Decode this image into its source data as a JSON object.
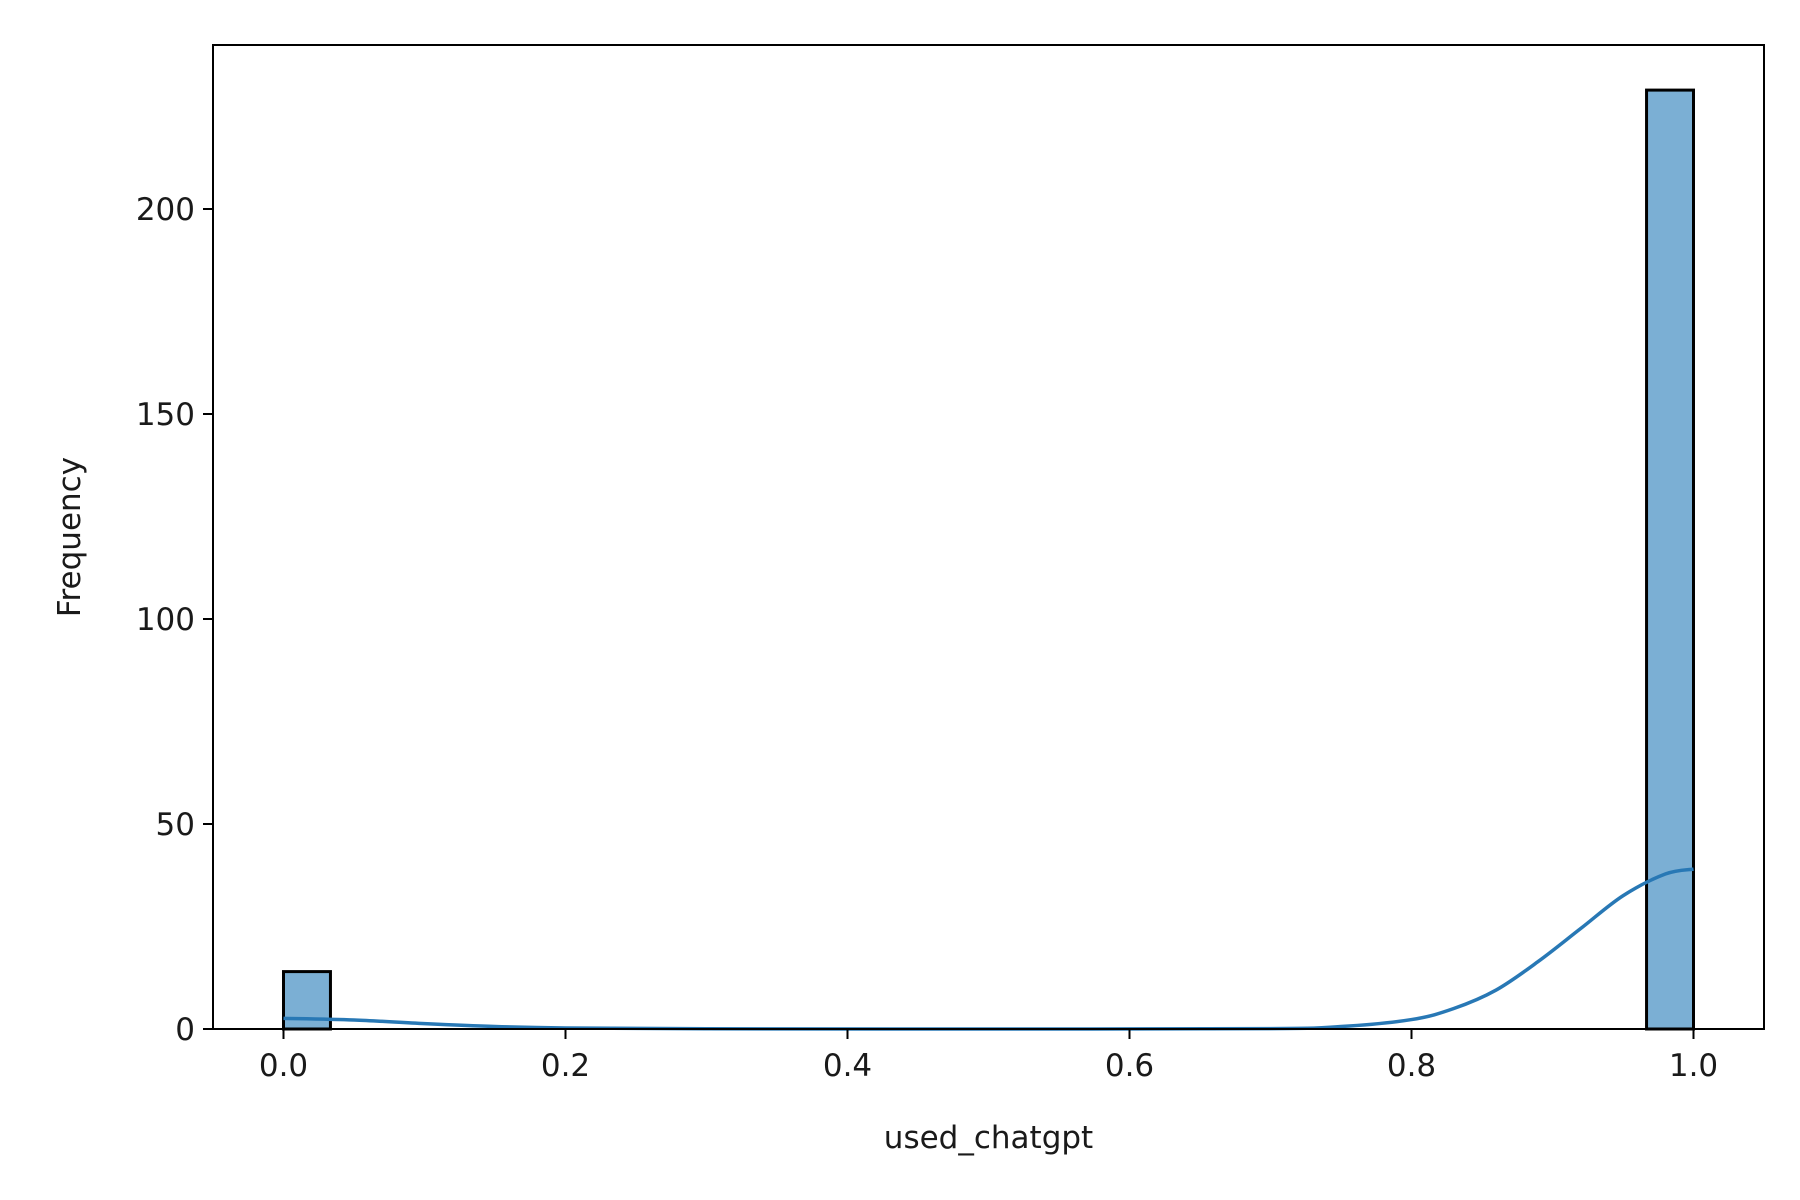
{
  "chart_data": {
    "type": "bar",
    "subtype": "histogram",
    "title": "",
    "xlabel": "used_chatgpt",
    "ylabel": "Frequency",
    "xlim": [
      -0.05,
      1.05
    ],
    "ylim": [
      0,
      240
    ],
    "xticks": [
      0.0,
      0.2,
      0.4,
      0.6,
      0.8,
      1.0
    ],
    "xtick_labels": [
      "0.0",
      "0.2",
      "0.4",
      "0.6",
      "0.8",
      "1.0"
    ],
    "yticks": [
      0,
      50,
      100,
      150,
      200
    ],
    "ytick_labels": [
      "0",
      "50",
      "100",
      "150",
      "200"
    ],
    "grid": false,
    "legend": "none",
    "bins": [
      {
        "x0": 0.0,
        "x1": 0.0333,
        "count": 14
      },
      {
        "x0": 0.9667,
        "x1": 1.0,
        "count": 229
      }
    ],
    "kde": {
      "x": [
        0.0,
        0.05,
        0.1,
        0.15,
        0.2,
        0.3,
        0.5,
        0.7,
        0.75,
        0.8,
        0.83,
        0.86,
        0.89,
        0.92,
        0.95,
        0.98,
        1.0
      ],
      "y": [
        2.6,
        2.2,
        1.3,
        0.6,
        0.25,
        0.05,
        0.0,
        0.1,
        0.6,
        2.3,
        5.0,
        9.5,
        16.5,
        24.5,
        32.5,
        37.8,
        39.0
      ]
    },
    "colors": {
      "bar_fill": "#7bafd4",
      "bar_edge": "#000000",
      "kde_line": "#2878b5"
    }
  }
}
